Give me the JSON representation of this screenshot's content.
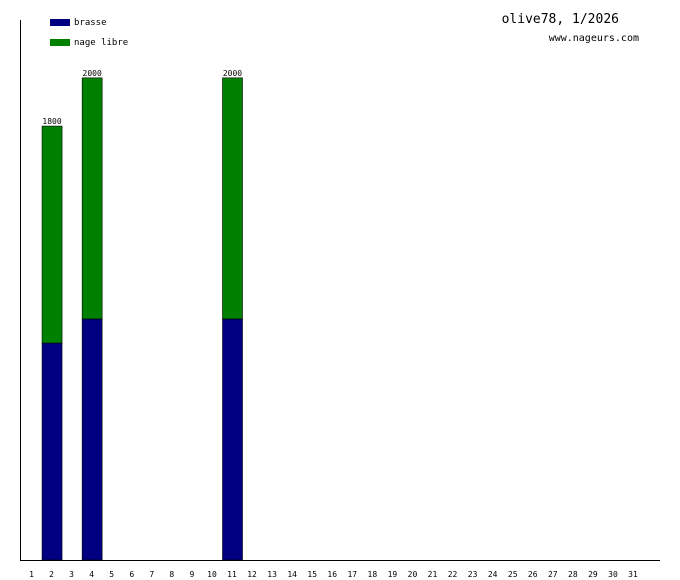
{
  "chart_data": {
    "type": "bar",
    "stacked": true,
    "title": "olive78, 1/2026",
    "subtitle": "www.nageurs.com",
    "categories": [
      "1",
      "2",
      "3",
      "4",
      "5",
      "6",
      "7",
      "8",
      "9",
      "10",
      "11",
      "12",
      "13",
      "14",
      "15",
      "16",
      "17",
      "18",
      "19",
      "20",
      "21",
      "22",
      "23",
      "24",
      "25",
      "26",
      "27",
      "28",
      "29",
      "30",
      "31"
    ],
    "series": [
      {
        "name": "brasse",
        "color": "#000080",
        "values": [
          0,
          900,
          0,
          1000,
          0,
          0,
          0,
          0,
          0,
          0,
          1000,
          0,
          0,
          0,
          0,
          0,
          0,
          0,
          0,
          0,
          0,
          0,
          0,
          0,
          0,
          0,
          0,
          0,
          0,
          0,
          0
        ]
      },
      {
        "name": "nage libre",
        "color": "#008000",
        "values": [
          0,
          900,
          0,
          1000,
          0,
          0,
          0,
          0,
          0,
          0,
          1000,
          0,
          0,
          0,
          0,
          0,
          0,
          0,
          0,
          0,
          0,
          0,
          0,
          0,
          0,
          0,
          0,
          0,
          0,
          0,
          0
        ]
      }
    ],
    "totals": [
      {
        "day": "2",
        "label": "1800"
      },
      {
        "day": "4",
        "label": "2000"
      },
      {
        "day": "11",
        "label": "2000"
      }
    ],
    "ylim": [
      0,
      2240
    ],
    "grid": false,
    "legend_position": "top-left"
  }
}
